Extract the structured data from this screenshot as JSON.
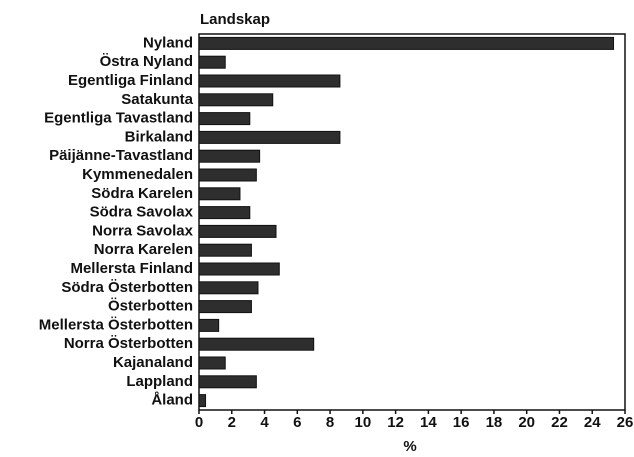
{
  "chart_data": {
    "type": "barh",
    "title": "Landskap",
    "categories": [
      "Nyland",
      "Östra Nyland",
      "Egentliga Finland",
      "Satakunta",
      "Egentliga Tavastland",
      "Birkaland",
      "Päijänne-Tavastland",
      "Kymmenedalen",
      "Södra Karelen",
      "Södra Savolax",
      "Norra Savolax",
      "Norra Karelen",
      "Mellersta Finland",
      "Södra Österbotten",
      "Österbotten",
      "Mellersta Österbotten",
      "Norra Österbotten",
      "Kajanaland",
      "Lappland",
      "Åland"
    ],
    "values": [
      25.3,
      1.6,
      8.6,
      4.5,
      3.1,
      8.6,
      3.7,
      3.5,
      2.5,
      3.1,
      4.7,
      3.2,
      4.9,
      3.6,
      3.2,
      1.2,
      7.0,
      1.6,
      3.5,
      0.4
    ],
    "color": "#2e2e2e",
    "xlabel": "%",
    "xlim": [
      0,
      26
    ],
    "xticks": [
      0,
      2,
      4,
      6,
      8,
      10,
      12,
      14,
      16,
      18,
      20,
      22,
      24,
      26
    ]
  }
}
